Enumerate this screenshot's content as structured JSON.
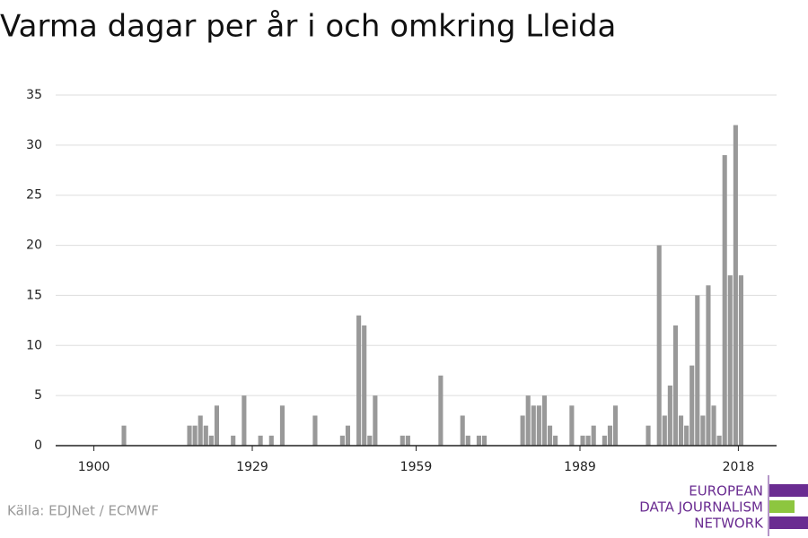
{
  "chart_data": {
    "type": "bar",
    "title": "Varma dagar per år i och omkring Lleida",
    "source": "Källa: EDJNet / ECMWF",
    "logo": [
      "EUROPEAN",
      "DATA JOURNALISM",
      "NETWORK"
    ],
    "x": [
      1905,
      1917,
      1918,
      1919,
      1920,
      1921,
      1922,
      1925,
      1927,
      1930,
      1932,
      1934,
      1940,
      1945,
      1946,
      1948,
      1949,
      1950,
      1951,
      1956,
      1957,
      1963,
      1967,
      1968,
      1970,
      1971,
      1978,
      1979,
      1980,
      1981,
      1982,
      1983,
      1984,
      1987,
      1989,
      1990,
      1991,
      1993,
      1994,
      1995,
      2001,
      2003,
      2004,
      2005,
      2006,
      2007,
      2008,
      2009,
      2010,
      2011,
      2012,
      2013,
      2014,
      2015,
      2016,
      2017,
      2018
    ],
    "values": [
      2,
      2,
      2,
      3,
      2,
      1,
      4,
      1,
      5,
      1,
      1,
      4,
      3,
      1,
      2,
      13,
      12,
      1,
      5,
      1,
      1,
      7,
      3,
      1,
      1,
      1,
      3,
      5,
      4,
      4,
      5,
      2,
      1,
      4,
      1,
      1,
      2,
      1,
      2,
      4,
      2,
      20,
      3,
      6,
      12,
      3,
      2,
      8,
      15,
      3,
      16,
      4,
      1,
      29,
      17,
      32,
      17
    ],
    "color": "#999999",
    "xlim": [
      1893,
      2025
    ],
    "xticks": [
      1900,
      1929,
      1959,
      1989,
      2018
    ],
    "ylim": [
      0,
      35
    ],
    "yticks": [
      0,
      5,
      10,
      15,
      20,
      25,
      30,
      35
    ],
    "grid": true
  }
}
